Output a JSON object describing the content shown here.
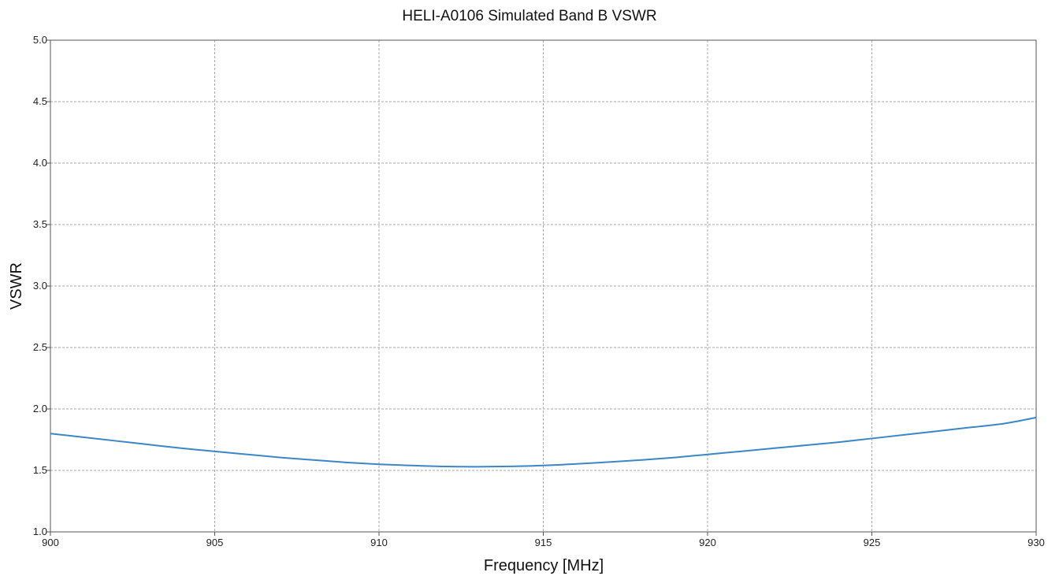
{
  "chart_data": {
    "type": "line",
    "title": "HELI-A0106 Simulated Band B VSWR",
    "xlabel": "Frequency [MHz]",
    "ylabel": "VSWR",
    "xlim": [
      900,
      930
    ],
    "ylim": [
      1.0,
      5.0
    ],
    "xticks": [
      900,
      905,
      910,
      915,
      920,
      925,
      930
    ],
    "yticks": [
      1.0,
      1.5,
      2.0,
      2.5,
      3.0,
      3.5,
      4.0,
      4.5,
      5.0
    ],
    "grid": true,
    "series": [
      {
        "color": "#3a86c8",
        "x": [
          900,
          901,
          902,
          903,
          904,
          905,
          906,
          907,
          908,
          909,
          910,
          911,
          912,
          913,
          914,
          915,
          916,
          917,
          918,
          919,
          920,
          921,
          922,
          923,
          924,
          925,
          926,
          927,
          928,
          929,
          930
        ],
        "y": [
          1.8,
          1.77,
          1.74,
          1.71,
          1.68,
          1.655,
          1.63,
          1.605,
          1.585,
          1.565,
          1.55,
          1.54,
          1.532,
          1.53,
          1.533,
          1.54,
          1.553,
          1.568,
          1.585,
          1.605,
          1.63,
          1.655,
          1.68,
          1.705,
          1.73,
          1.76,
          1.79,
          1.82,
          1.85,
          1.88,
          1.93
        ]
      }
    ]
  }
}
